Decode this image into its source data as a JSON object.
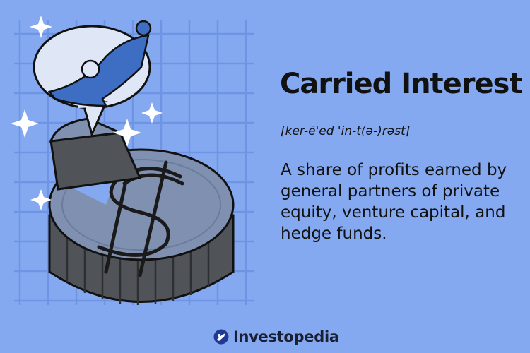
{
  "title": "Carried Interest",
  "pronunciation": "[ker-ē'ed 'in-t(ə-)rəst]",
  "definition": "A share of profits earned by general partners of private equity, venture capital, and hedge funds.",
  "brand": {
    "name": "Investopedia",
    "logo_icon": "investopedia-logo-icon"
  },
  "colors": {
    "background": "#85a9f1",
    "grid": "#6f94e3",
    "text": "#111111",
    "coin_face": "#7f90b0",
    "coin_edge": "#505459",
    "bubble": "#dfe6f6",
    "figure": "#3e6dc4"
  }
}
